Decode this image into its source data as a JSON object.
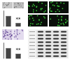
{
  "chart_data": [
    {
      "type": "bar",
      "categories": [
        null,
        null
      ],
      "values": [
        1.0,
        0.35
      ],
      "color": "#444444",
      "ylim": [
        0,
        1.5
      ],
      "yticks": [
        0,
        0.5,
        1,
        1.5
      ],
      "tick_labels": false,
      "grid": false,
      "annotations": [
        "**"
      ]
    },
    {
      "type": "bar",
      "categories": [
        null,
        null
      ],
      "values": [
        1.0,
        0.45
      ],
      "color": "#444444",
      "ylim": [
        0,
        1.5
      ],
      "yticks": [
        0,
        0.5,
        1,
        1.5
      ],
      "tick_labels": false,
      "grid": false,
      "annotations": [
        "**"
      ]
    }
  ]
}
